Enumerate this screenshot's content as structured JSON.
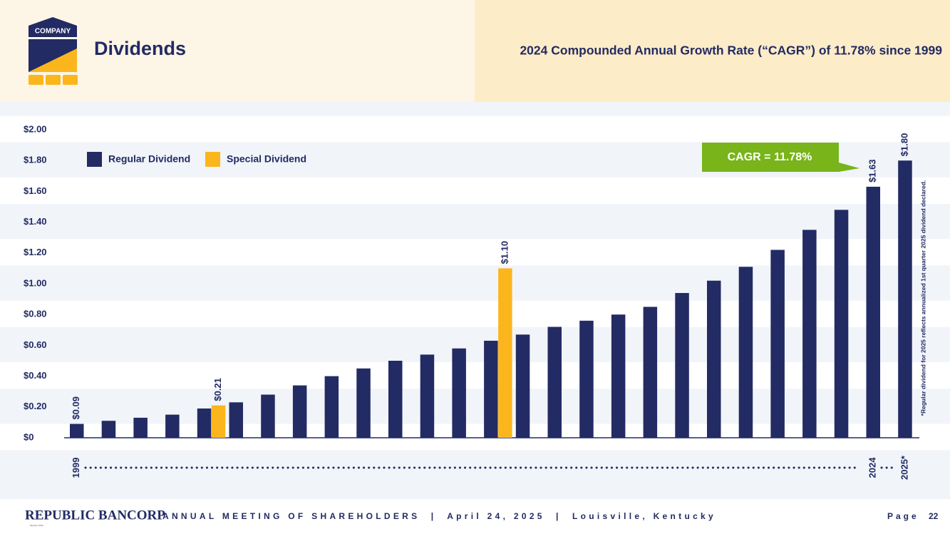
{
  "chart_data": {
    "type": "bar",
    "title": "Dividends",
    "subtitle": "2024 Compounded Annual Growth Rate (“CAGR”) of 11.78% since 1999",
    "categories": [
      "1999",
      null,
      null,
      null,
      null,
      null,
      null,
      null,
      null,
      null,
      null,
      null,
      null,
      null,
      null,
      null,
      null,
      null,
      null,
      null,
      null,
      null,
      null,
      null,
      null,
      "2024",
      "2025*"
    ],
    "series": [
      {
        "name": "Regular Dividend",
        "color": "#222b63",
        "values": [
          0.09,
          0.11,
          0.13,
          0.15,
          0.19,
          0.23,
          0.28,
          0.34,
          0.4,
          0.45,
          0.5,
          0.54,
          0.58,
          0.63,
          0.67,
          0.72,
          0.76,
          0.8,
          0.85,
          0.94,
          1.02,
          1.11,
          1.22,
          1.35,
          1.48,
          1.63,
          1.8
        ],
        "value_labels": [
          "$0.09",
          null,
          null,
          null,
          null,
          null,
          null,
          null,
          null,
          null,
          null,
          null,
          null,
          null,
          null,
          null,
          null,
          null,
          null,
          null,
          null,
          null,
          null,
          null,
          null,
          "$1.63",
          "$1.80"
        ]
      },
      {
        "name": "Special Dividend",
        "color": "#fbb61e",
        "values": [
          null,
          null,
          null,
          null,
          0.21,
          null,
          null,
          null,
          null,
          null,
          null,
          null,
          null,
          1.1,
          null,
          null,
          null,
          null,
          null,
          null,
          null,
          null,
          null,
          null,
          null,
          null,
          null
        ],
        "value_labels": [
          null,
          null,
          null,
          null,
          "$0.21",
          null,
          null,
          null,
          null,
          null,
          null,
          null,
          null,
          "$1.10",
          null,
          null,
          null,
          null,
          null,
          null,
          null,
          null,
          null,
          null,
          null,
          null,
          null
        ]
      }
    ],
    "ylim": [
      0,
      2
    ],
    "yticks": [
      {
        "value": 0,
        "label": "$0"
      },
      {
        "value": 0.2,
        "label": "$0.20"
      },
      {
        "value": 0.4,
        "label": "$0.40"
      },
      {
        "value": 0.6,
        "label": "$0.60"
      },
      {
        "value": 0.8,
        "label": "$0.80"
      },
      {
        "value": 1,
        "label": "$1.00"
      },
      {
        "value": 1.2,
        "label": "$1.20"
      },
      {
        "value": 1.4,
        "label": "$1.40"
      },
      {
        "value": 1.6,
        "label": "$1.60"
      },
      {
        "value": 1.8,
        "label": "$1.80"
      },
      {
        "value": 2,
        "label": "$2.00"
      }
    ],
    "grid": true,
    "legend": "top-left",
    "annotation": "CAGR = 11.78%",
    "footnote": "*Regular dividend for 2025 reflects annualized 1st quarter 2025 dividend declared."
  },
  "logo": {
    "label": "COMPANY"
  },
  "footer": {
    "brand": "REPUBLIC BANCORP",
    "member": "Member FDIC",
    "meeting": "ANNUAL MEETING OF SHAREHOLDERS  |  April 24, 2025  |  Louisville, Kentucky",
    "page_label": "Page",
    "page_number": "22"
  }
}
